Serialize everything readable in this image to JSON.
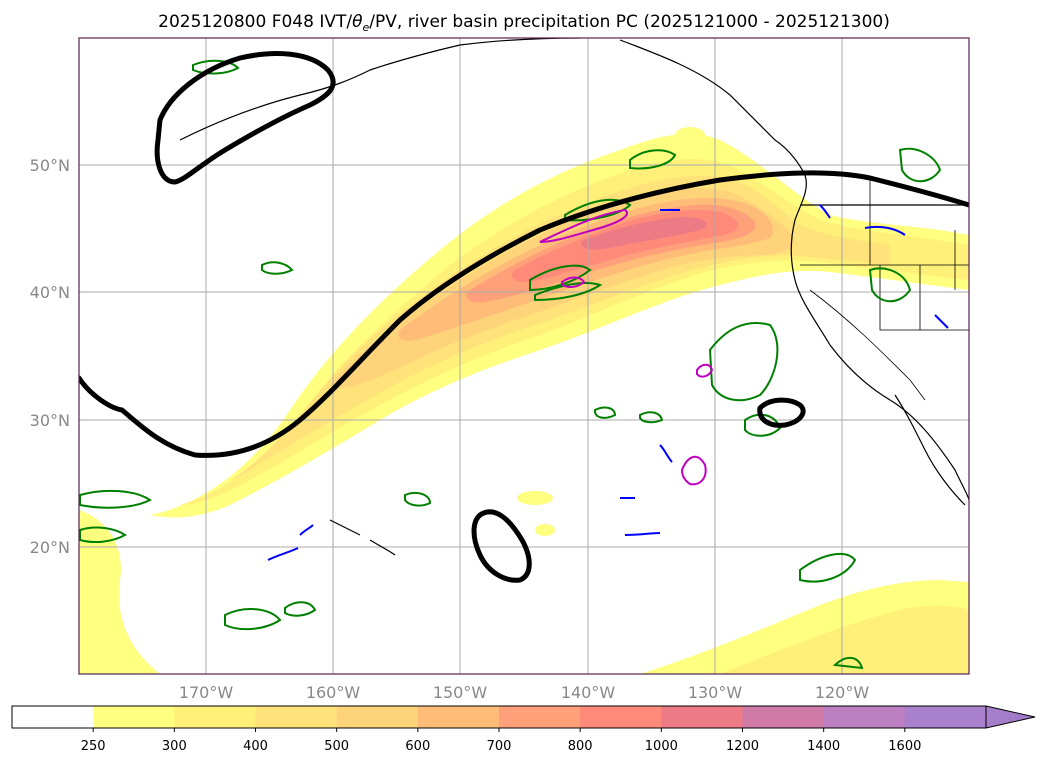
{
  "chart_data": {
    "type": "map",
    "title": "2025120800 F048 IVT/θe/PV, river basin precipitation PC (2025121000 - 2025121300)",
    "title_parts": {
      "prefix": "2025120800 F048 IVT/",
      "theta": "θ",
      "sub": "e",
      "suffix": "/PV, river basin precipitation PC (2025121000 - 2025121300)"
    },
    "lon_range": [
      -180,
      -110
    ],
    "lat_range": [
      10,
      60
    ],
    "lon_ticks": [
      {
        "value": -170,
        "label": "170°W"
      },
      {
        "value": -160,
        "label": "160°W"
      },
      {
        "value": -150,
        "label": "150°W"
      },
      {
        "value": -140,
        "label": "140°W"
      },
      {
        "value": -130,
        "label": "130°W"
      },
      {
        "value": -120,
        "label": "120°W"
      }
    ],
    "lat_ticks": [
      {
        "value": 20,
        "label": "20°N"
      },
      {
        "value": 30,
        "label": "30°N"
      },
      {
        "value": 40,
        "label": "40°N"
      },
      {
        "value": 50,
        "label": "50°N"
      }
    ],
    "grid": true,
    "colorbar": {
      "levels": [
        "250",
        "300",
        "400",
        "500",
        "600",
        "700",
        "800",
        "1000",
        "1200",
        "1400",
        "1600"
      ],
      "colors": [
        "#ffffff",
        "#ffff80",
        "#fff07a",
        "#ffe27a",
        "#ffd37a",
        "#ffbb78",
        "#ffa07a",
        "#ff8a7a",
        "#ec7b86",
        "#d07aa6",
        "#bc80c2",
        "#a880cc"
      ],
      "extend": "max"
    },
    "colors": {
      "black_contour": "#000000",
      "green_contour": "#008000",
      "blue_contour": "#0000ff",
      "magenta_contour": "#c000c0"
    }
  }
}
